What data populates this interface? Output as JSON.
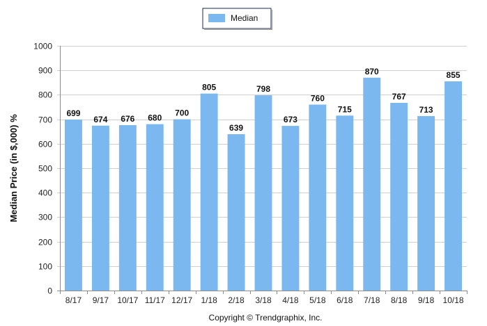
{
  "chart_data": {
    "type": "bar",
    "categories": [
      "8/17",
      "9/17",
      "10/17",
      "11/17",
      "12/17",
      "1/18",
      "2/18",
      "3/18",
      "4/18",
      "5/18",
      "6/18",
      "7/18",
      "8/18",
      "9/18",
      "10/18"
    ],
    "series": [
      {
        "name": "Median",
        "values": [
          699,
          674,
          676,
          680,
          700,
          805,
          639,
          798,
          673,
          760,
          715,
          870,
          767,
          713,
          855
        ],
        "color": "#7ab8ef"
      }
    ],
    "ylabel": "Median Price (in $,000) %",
    "xlabel": "",
    "ylim": [
      0,
      1000
    ],
    "yticks": [
      0,
      100,
      200,
      300,
      400,
      500,
      600,
      700,
      800,
      900,
      1000
    ],
    "grid": true,
    "legend_position": "top-center",
    "data_labels": true
  },
  "legend": {
    "label": "Median"
  },
  "copyright": "Copyright © Trendgraphix, Inc."
}
